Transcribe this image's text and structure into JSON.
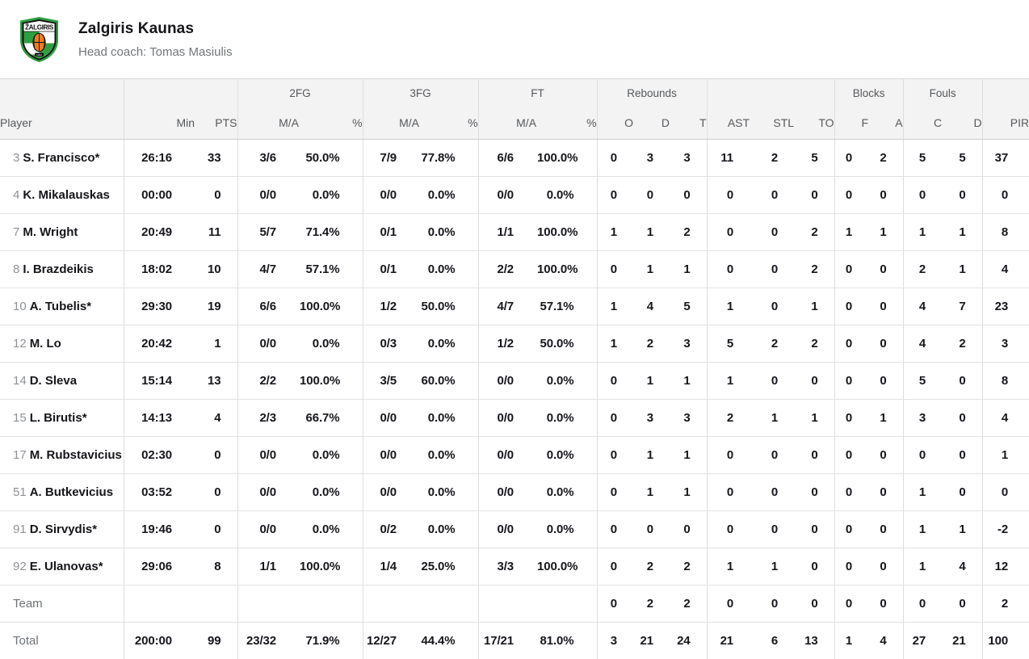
{
  "header": {
    "team_name": "Zalgiris Kaunas",
    "coach": "Head coach: Tomas Masiulis",
    "logo": {
      "banner_text": "ŽALGIRIS",
      "year": "1944",
      "colors": {
        "green": "#2f9e41",
        "orange": "#ee7d22",
        "black": "#121212",
        "white": "#ffffff"
      }
    }
  },
  "table": {
    "groups": {
      "fg2": "2FG",
      "fg3": "3FG",
      "ft": "FT",
      "rebounds": "Rebounds",
      "blocks": "Blocks",
      "fouls": "Fouls"
    },
    "cols": {
      "player": "Player",
      "min": "Min",
      "pts": "PTS",
      "ma": "M/A",
      "pct": "%",
      "o": "O",
      "d": "D",
      "t": "T",
      "ast": "AST",
      "stl": "STL",
      "to": "TO",
      "f": "F",
      "a": "A",
      "c": "C",
      "d2": "D",
      "pir": "PIR"
    },
    "rows": [
      {
        "kind": "player",
        "num": "3",
        "name": "S. Francisco*",
        "min": "26:16",
        "pts": "33",
        "fg2": "3/6",
        "fg2p": "50.0%",
        "fg3": "7/9",
        "fg3p": "77.8%",
        "ft": "6/6",
        "ftp": "100.0%",
        "o": "0",
        "d": "3",
        "t": "3",
        "ast": "11",
        "stl": "2",
        "to": "5",
        "bf": "0",
        "ba": "2",
        "fc": "5",
        "fd": "5",
        "pir": "37"
      },
      {
        "kind": "player",
        "num": "4",
        "name": "K. Mikalauskas",
        "min": "00:00",
        "pts": "0",
        "fg2": "0/0",
        "fg2p": "0.0%",
        "fg3": "0/0",
        "fg3p": "0.0%",
        "ft": "0/0",
        "ftp": "0.0%",
        "o": "0",
        "d": "0",
        "t": "0",
        "ast": "0",
        "stl": "0",
        "to": "0",
        "bf": "0",
        "ba": "0",
        "fc": "0",
        "fd": "0",
        "pir": "0"
      },
      {
        "kind": "player",
        "num": "7",
        "name": "M. Wright",
        "min": "20:49",
        "pts": "11",
        "fg2": "5/7",
        "fg2p": "71.4%",
        "fg3": "0/1",
        "fg3p": "0.0%",
        "ft": "1/1",
        "ftp": "100.0%",
        "o": "1",
        "d": "1",
        "t": "2",
        "ast": "0",
        "stl": "0",
        "to": "2",
        "bf": "1",
        "ba": "1",
        "fc": "1",
        "fd": "1",
        "pir": "8"
      },
      {
        "kind": "player",
        "num": "8",
        "name": "I. Brazdeikis",
        "min": "18:02",
        "pts": "10",
        "fg2": "4/7",
        "fg2p": "57.1%",
        "fg3": "0/1",
        "fg3p": "0.0%",
        "ft": "2/2",
        "ftp": "100.0%",
        "o": "0",
        "d": "1",
        "t": "1",
        "ast": "0",
        "stl": "0",
        "to": "2",
        "bf": "0",
        "ba": "0",
        "fc": "2",
        "fd": "1",
        "pir": "4"
      },
      {
        "kind": "player",
        "num": "10",
        "name": "A. Tubelis*",
        "min": "29:30",
        "pts": "19",
        "fg2": "6/6",
        "fg2p": "100.0%",
        "fg3": "1/2",
        "fg3p": "50.0%",
        "ft": "4/7",
        "ftp": "57.1%",
        "o": "1",
        "d": "4",
        "t": "5",
        "ast": "1",
        "stl": "0",
        "to": "1",
        "bf": "0",
        "ba": "0",
        "fc": "4",
        "fd": "7",
        "pir": "23"
      },
      {
        "kind": "player",
        "num": "12",
        "name": "M. Lo",
        "min": "20:42",
        "pts": "1",
        "fg2": "0/0",
        "fg2p": "0.0%",
        "fg3": "0/3",
        "fg3p": "0.0%",
        "ft": "1/2",
        "ftp": "50.0%",
        "o": "1",
        "d": "2",
        "t": "3",
        "ast": "5",
        "stl": "2",
        "to": "2",
        "bf": "0",
        "ba": "0",
        "fc": "4",
        "fd": "2",
        "pir": "3"
      },
      {
        "kind": "player",
        "num": "14",
        "name": "D. Sleva",
        "min": "15:14",
        "pts": "13",
        "fg2": "2/2",
        "fg2p": "100.0%",
        "fg3": "3/5",
        "fg3p": "60.0%",
        "ft": "0/0",
        "ftp": "0.0%",
        "o": "0",
        "d": "1",
        "t": "1",
        "ast": "1",
        "stl": "0",
        "to": "0",
        "bf": "0",
        "ba": "0",
        "fc": "5",
        "fd": "0",
        "pir": "8"
      },
      {
        "kind": "player",
        "num": "15",
        "name": "L. Birutis*",
        "min": "14:13",
        "pts": "4",
        "fg2": "2/3",
        "fg2p": "66.7%",
        "fg3": "0/0",
        "fg3p": "0.0%",
        "ft": "0/0",
        "ftp": "0.0%",
        "o": "0",
        "d": "3",
        "t": "3",
        "ast": "2",
        "stl": "1",
        "to": "1",
        "bf": "0",
        "ba": "1",
        "fc": "3",
        "fd": "0",
        "pir": "4"
      },
      {
        "kind": "player",
        "num": "17",
        "name": "M. Rubstavicius",
        "min": "02:30",
        "pts": "0",
        "fg2": "0/0",
        "fg2p": "0.0%",
        "fg3": "0/0",
        "fg3p": "0.0%",
        "ft": "0/0",
        "ftp": "0.0%",
        "o": "0",
        "d": "1",
        "t": "1",
        "ast": "0",
        "stl": "0",
        "to": "0",
        "bf": "0",
        "ba": "0",
        "fc": "0",
        "fd": "0",
        "pir": "1"
      },
      {
        "kind": "player",
        "num": "51",
        "name": "A. Butkevicius",
        "min": "03:52",
        "pts": "0",
        "fg2": "0/0",
        "fg2p": "0.0%",
        "fg3": "0/0",
        "fg3p": "0.0%",
        "ft": "0/0",
        "ftp": "0.0%",
        "o": "0",
        "d": "1",
        "t": "1",
        "ast": "0",
        "stl": "0",
        "to": "0",
        "bf": "0",
        "ba": "0",
        "fc": "1",
        "fd": "0",
        "pir": "0"
      },
      {
        "kind": "player",
        "num": "91",
        "name": "D. Sirvydis*",
        "min": "19:46",
        "pts": "0",
        "fg2": "0/0",
        "fg2p": "0.0%",
        "fg3": "0/2",
        "fg3p": "0.0%",
        "ft": "0/0",
        "ftp": "0.0%",
        "o": "0",
        "d": "0",
        "t": "0",
        "ast": "0",
        "stl": "0",
        "to": "0",
        "bf": "0",
        "ba": "0",
        "fc": "1",
        "fd": "1",
        "pir": "-2"
      },
      {
        "kind": "player",
        "num": "92",
        "name": "E. Ulanovas*",
        "min": "29:06",
        "pts": "8",
        "fg2": "1/1",
        "fg2p": "100.0%",
        "fg3": "1/4",
        "fg3p": "25.0%",
        "ft": "3/3",
        "ftp": "100.0%",
        "o": "0",
        "d": "2",
        "t": "2",
        "ast": "1",
        "stl": "1",
        "to": "0",
        "bf": "0",
        "ba": "0",
        "fc": "1",
        "fd": "4",
        "pir": "12"
      },
      {
        "kind": "team",
        "num": "",
        "name": "Team",
        "min": "",
        "pts": "",
        "fg2": "",
        "fg2p": "",
        "fg3": "",
        "fg3p": "",
        "ft": "",
        "ftp": "",
        "o": "0",
        "d": "2",
        "t": "2",
        "ast": "0",
        "stl": "0",
        "to": "0",
        "bf": "0",
        "ba": "0",
        "fc": "0",
        "fd": "0",
        "pir": "2"
      },
      {
        "kind": "total",
        "num": "",
        "name": "Total",
        "min": "200:00",
        "pts": "99",
        "fg2": "23/32",
        "fg2p": "71.9%",
        "fg3": "12/27",
        "fg3p": "44.4%",
        "ft": "17/21",
        "ftp": "81.0%",
        "o": "3",
        "d": "21",
        "t": "24",
        "ast": "21",
        "stl": "6",
        "to": "13",
        "bf": "1",
        "ba": "4",
        "fc": "27",
        "fd": "21",
        "pir": "100"
      }
    ]
  }
}
